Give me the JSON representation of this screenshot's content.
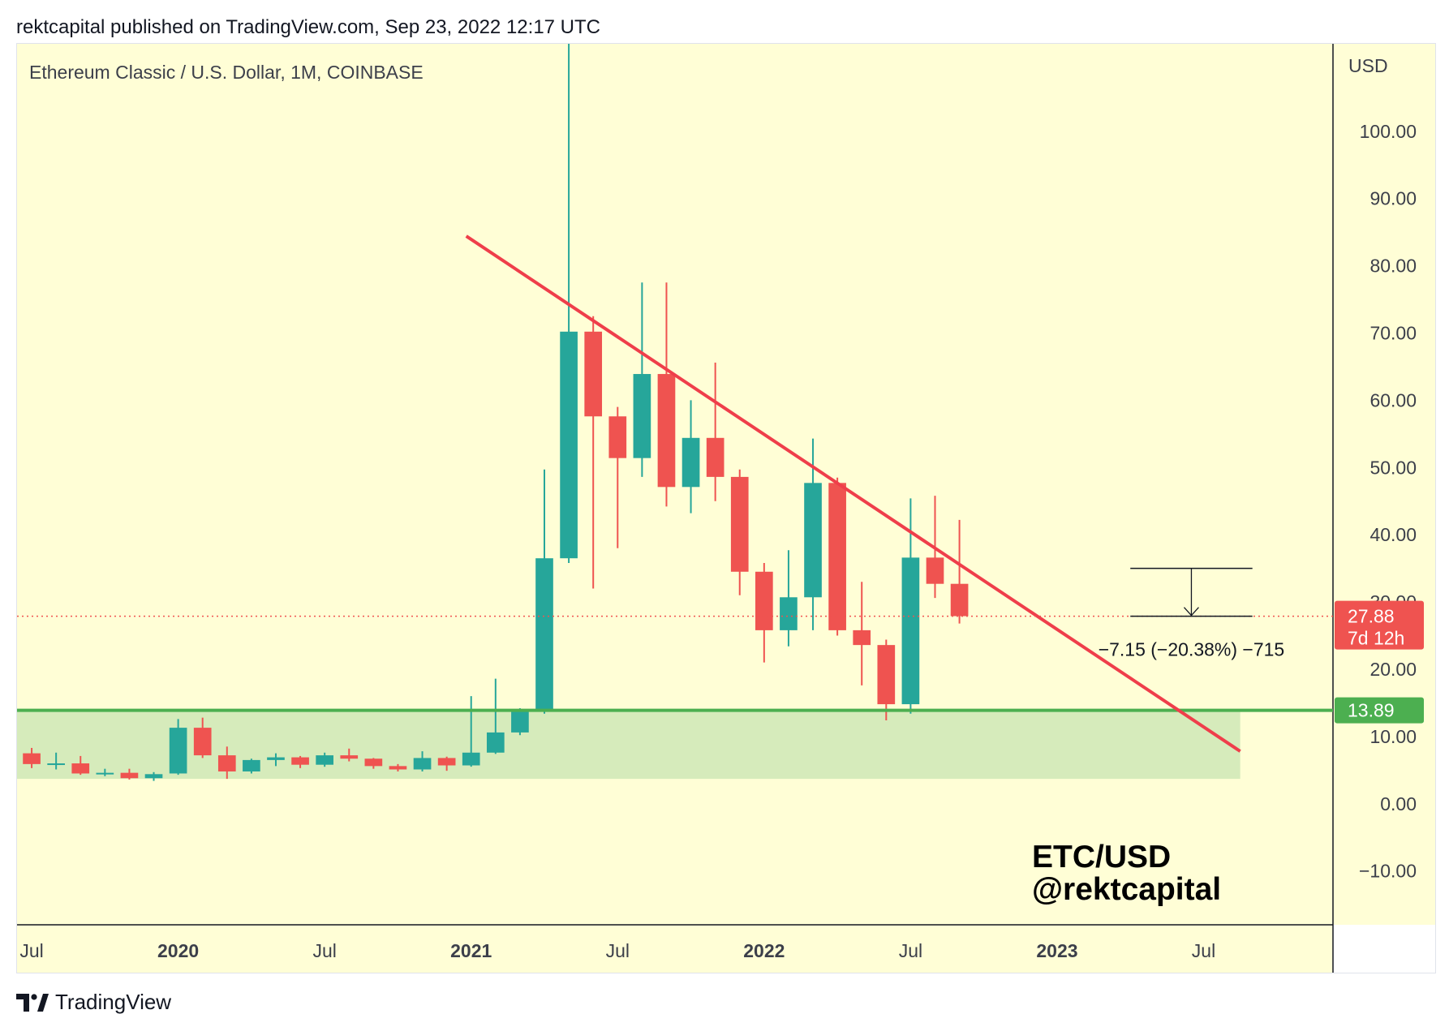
{
  "header": {
    "published_text": "rektcapital published on TradingView.com, Sep 23, 2022 12:17 UTC"
  },
  "footer": {
    "brand": "TradingView",
    "brand_icon": "tradingview-logo-icon"
  },
  "colors": {
    "background": "#fffed6",
    "bull": "#26a69a",
    "bear": "#ef5350",
    "trendline": "#ef3e4a",
    "support_line": "#4caf50",
    "support_zone": "#d6ebbb",
    "axis_text": "#3c3f4a"
  },
  "chart_data": {
    "type": "candlestick",
    "title": "Ethereum Classic / U.S. Dollar, 1M, COINBASE",
    "symbol_watermark": [
      "ETC/USD",
      "@rektcapital"
    ],
    "y_axis": {
      "label": "USD",
      "ticks": [
        "100.00",
        "90.00",
        "80.00",
        "70.00",
        "60.00",
        "50.00",
        "40.00",
        "30.00",
        "20.00",
        "10.00",
        "0.00",
        "−10.00"
      ],
      "tick_values": [
        100,
        90,
        80,
        70,
        60,
        50,
        40,
        30,
        20,
        10,
        0,
        -10
      ],
      "ylim": [
        -18,
        113
      ]
    },
    "x_axis": {
      "ticks": [
        {
          "label": "Jul",
          "month_index": 0,
          "bold": false
        },
        {
          "label": "2020",
          "month_index": 6,
          "bold": true
        },
        {
          "label": "Jul",
          "month_index": 12,
          "bold": false
        },
        {
          "label": "2021",
          "month_index": 18,
          "bold": true
        },
        {
          "label": "Jul",
          "month_index": 24,
          "bold": false
        },
        {
          "label": "2022",
          "month_index": 30,
          "bold": true
        },
        {
          "label": "Jul",
          "month_index": 36,
          "bold": false
        },
        {
          "label": "2023",
          "month_index": 42,
          "bold": true
        },
        {
          "label": "Jul",
          "month_index": 48,
          "bold": false
        }
      ],
      "range_months": [
        -0.6,
        53.3
      ]
    },
    "candles": [
      {
        "m": 0,
        "o": 7.5,
        "h": 8.3,
        "l": 5.3,
        "c": 5.9
      },
      {
        "m": 1,
        "o": 5.9,
        "h": 7.6,
        "l": 5.1,
        "c": 6.0
      },
      {
        "m": 2,
        "o": 6.0,
        "h": 7.1,
        "l": 4.3,
        "c": 4.5
      },
      {
        "m": 3,
        "o": 4.5,
        "h": 5.2,
        "l": 4.1,
        "c": 4.6
      },
      {
        "m": 4,
        "o": 4.6,
        "h": 5.2,
        "l": 3.6,
        "c": 3.8
      },
      {
        "m": 5,
        "o": 3.8,
        "h": 4.7,
        "l": 3.4,
        "c": 4.4
      },
      {
        "m": 6,
        "o": 4.5,
        "h": 12.6,
        "l": 4.3,
        "c": 11.3
      },
      {
        "m": 7,
        "o": 11.3,
        "h": 12.8,
        "l": 6.8,
        "c": 7.2
      },
      {
        "m": 8,
        "o": 7.2,
        "h": 8.5,
        "l": 3.7,
        "c": 4.8
      },
      {
        "m": 9,
        "o": 4.8,
        "h": 6.7,
        "l": 4.5,
        "c": 6.5
      },
      {
        "m": 10,
        "o": 6.5,
        "h": 7.5,
        "l": 5.6,
        "c": 6.9
      },
      {
        "m": 11,
        "o": 6.9,
        "h": 7.1,
        "l": 5.3,
        "c": 5.8
      },
      {
        "m": 12,
        "o": 5.8,
        "h": 7.6,
        "l": 5.5,
        "c": 7.2
      },
      {
        "m": 13,
        "o": 7.2,
        "h": 8.2,
        "l": 6.3,
        "c": 6.7
      },
      {
        "m": 14,
        "o": 6.7,
        "h": 6.8,
        "l": 5.2,
        "c": 5.6
      },
      {
        "m": 15,
        "o": 5.6,
        "h": 5.9,
        "l": 4.8,
        "c": 5.1
      },
      {
        "m": 16,
        "o": 5.1,
        "h": 7.8,
        "l": 4.8,
        "c": 6.8
      },
      {
        "m": 17,
        "o": 6.8,
        "h": 7.0,
        "l": 4.9,
        "c": 5.7
      },
      {
        "m": 18,
        "o": 5.7,
        "h": 16.0,
        "l": 5.5,
        "c": 7.6
      },
      {
        "m": 19,
        "o": 7.6,
        "h": 18.6,
        "l": 7.4,
        "c": 10.6
      },
      {
        "m": 20,
        "o": 10.6,
        "h": 14.2,
        "l": 10.2,
        "c": 14.0
      },
      {
        "m": 21,
        "o": 14.0,
        "h": 49.7,
        "l": 13.4,
        "c": 36.5
      },
      {
        "m": 22,
        "o": 36.5,
        "h": 176.0,
        "l": 35.8,
        "c": 70.2
      },
      {
        "m": 23,
        "o": 70.2,
        "h": 72.5,
        "l": 32.0,
        "c": 57.6
      },
      {
        "m": 24,
        "o": 57.6,
        "h": 59.0,
        "l": 38.0,
        "c": 51.4
      },
      {
        "m": 25,
        "o": 51.4,
        "h": 77.5,
        "l": 48.6,
        "c": 63.9
      },
      {
        "m": 26,
        "o": 63.9,
        "h": 77.5,
        "l": 44.2,
        "c": 47.1
      },
      {
        "m": 27,
        "o": 47.1,
        "h": 60.0,
        "l": 43.2,
        "c": 54.4
      },
      {
        "m": 28,
        "o": 54.4,
        "h": 65.6,
        "l": 45.0,
        "c": 48.6
      },
      {
        "m": 29,
        "o": 48.6,
        "h": 49.7,
        "l": 31.0,
        "c": 34.5
      },
      {
        "m": 30,
        "o": 34.5,
        "h": 35.8,
        "l": 21.0,
        "c": 25.8
      },
      {
        "m": 31,
        "o": 25.8,
        "h": 37.7,
        "l": 23.4,
        "c": 30.7
      },
      {
        "m": 32,
        "o": 30.7,
        "h": 54.3,
        "l": 25.8,
        "c": 47.7
      },
      {
        "m": 33,
        "o": 47.7,
        "h": 48.5,
        "l": 25.0,
        "c": 25.8
      },
      {
        "m": 34,
        "o": 25.8,
        "h": 33.0,
        "l": 17.6,
        "c": 23.6
      },
      {
        "m": 35,
        "o": 23.6,
        "h": 24.4,
        "l": 12.4,
        "c": 14.8
      },
      {
        "m": 36,
        "o": 14.8,
        "h": 45.4,
        "l": 13.4,
        "c": 36.6
      },
      {
        "m": 37,
        "o": 36.6,
        "h": 45.8,
        "l": 30.6,
        "c": 32.7
      },
      {
        "m": 38,
        "o": 32.7,
        "h": 42.2,
        "l": 26.8,
        "c": 27.9
      }
    ],
    "trendline": {
      "start": {
        "m": 17.8,
        "v": 84.4
      },
      "end": {
        "m": 49.5,
        "v": 7.8
      }
    },
    "support": {
      "value": 13.89,
      "label": "13.89",
      "zone": {
        "m_from": -0.6,
        "m_to": 49.5,
        "v_from": 3.7,
        "v_to": 13.89
      }
    },
    "current_price": {
      "value": 27.88,
      "label": "27.88",
      "countdown": "7d 12h"
    },
    "measure": {
      "m_from": 45.0,
      "m_to": 50.0,
      "top": 35.0,
      "bottom": 27.88,
      "label": "−7.15 (−20.38%) −715"
    }
  }
}
